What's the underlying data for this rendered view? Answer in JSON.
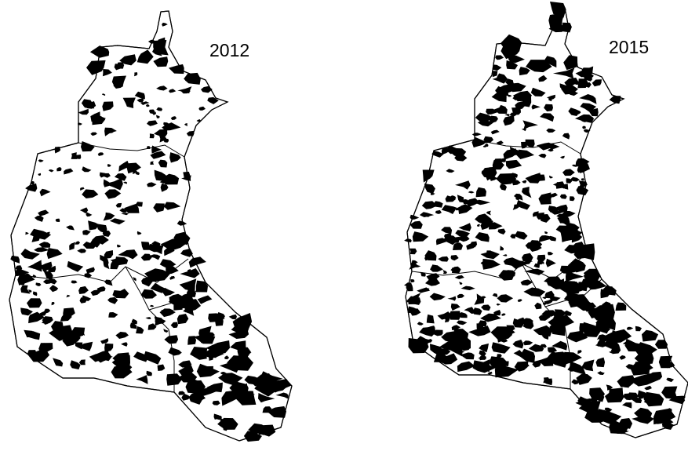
{
  "maps": [
    {
      "label": "2012"
    },
    {
      "label": "2015"
    }
  ]
}
